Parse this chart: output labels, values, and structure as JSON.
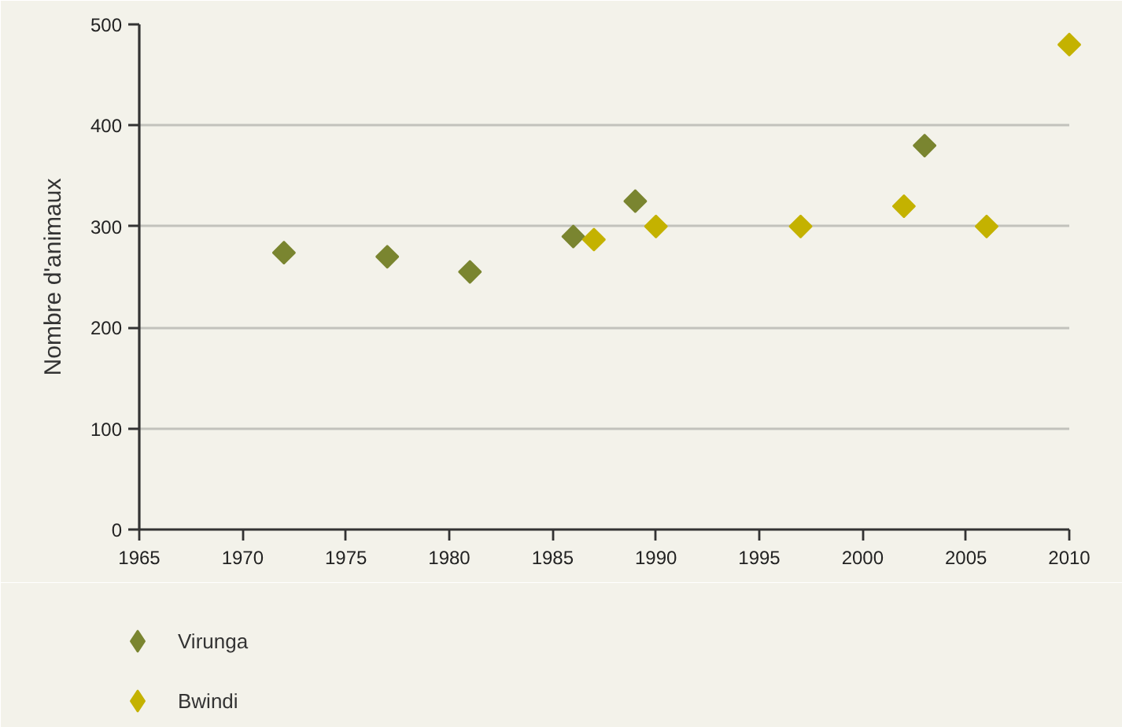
{
  "chart_data": {
    "type": "scatter",
    "ylabel": "Nombre d'animaux",
    "xlim": [
      1965,
      2010
    ],
    "xticks": [
      1965,
      1970,
      1975,
      1980,
      1985,
      1990,
      1995,
      2000,
      2005,
      2010
    ],
    "ylim": [
      0,
      500
    ],
    "yticks": [
      0,
      100,
      200,
      300,
      400,
      500
    ],
    "grid": "y",
    "legend": "bottom left",
    "marker": "diamond",
    "series": [
      {
        "name": "Virunga",
        "color": "#7a8530",
        "x": [
          1972,
          1977,
          1981,
          1986,
          1989,
          2003
        ],
        "values": [
          274,
          270,
          255,
          290,
          325,
          380
        ]
      },
      {
        "name": "Bwindi",
        "color": "#c4b200",
        "x": [
          1987,
          1990,
          1997,
          2002,
          2006,
          2010
        ],
        "values": [
          287,
          300,
          300,
          320,
          300,
          480
        ]
      }
    ]
  }
}
